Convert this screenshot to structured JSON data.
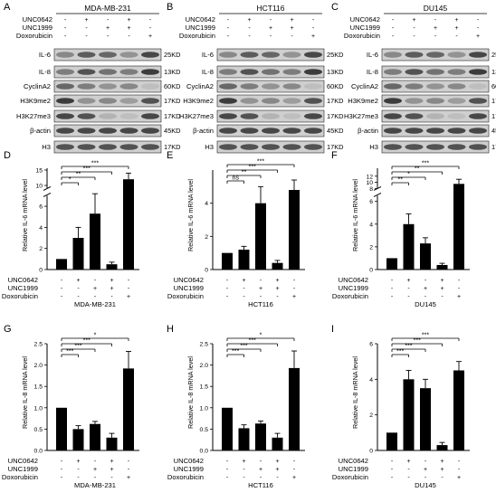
{
  "blot_rows": [
    "IL-6",
    "IL-8",
    "CyclinA2",
    "H3K9me2",
    "H3K27me3",
    "β-actin",
    "H3"
  ],
  "kd_labels": [
    "25KD",
    "13KD",
    "60KD",
    "17KD",
    "17KD",
    "45KD",
    "17KD"
  ],
  "treatment_labels": [
    "UNC0642",
    "UNC1999",
    "Doxorubicin"
  ],
  "signs": [
    [
      "-",
      "+",
      "-",
      "+",
      "-"
    ],
    [
      "-",
      "-",
      "+",
      "+",
      "-"
    ],
    [
      "-",
      "-",
      "-",
      "-",
      "+"
    ]
  ],
  "blot_panels": [
    {
      "letter": "A",
      "cell": "MDA-MB-231",
      "show_row_labels": true
    },
    {
      "letter": "B",
      "cell": "HCT116",
      "show_row_labels": true
    },
    {
      "letter": "C",
      "cell": "DU145",
      "show_row_labels": true
    }
  ],
  "chart_data": [
    {
      "type": "bar",
      "panel": "D",
      "cell_line": "MDA-MB-231",
      "ylabel": "Relative  IL-6 mRNA level",
      "values": [
        1,
        3,
        5.3,
        0.5,
        12
      ],
      "errors": [
        0,
        1,
        2,
        0.2,
        2
      ],
      "broken_axis": true,
      "lower_ylim": [
        0,
        7
      ],
      "lower_ticks": [
        0,
        2,
        4,
        6
      ],
      "upper_ylim": [
        9,
        15
      ],
      "upper_ticks": [
        10,
        15
      ],
      "significance": [
        {
          "to": 1,
          "label": "*"
        },
        {
          "to": 2,
          "label": "**"
        },
        {
          "to": 3,
          "label": "***"
        },
        {
          "to": 4,
          "label": "***"
        }
      ]
    },
    {
      "type": "bar",
      "panel": "E",
      "cell_line": "HCT116",
      "ylabel": "Relative  IL-6 mRNA level",
      "values": [
        1,
        1.2,
        4,
        0.4,
        4.8
      ],
      "errors": [
        0,
        0.2,
        1,
        0.15,
        0.6
      ],
      "broken_axis": false,
      "ylim": [
        0,
        6
      ],
      "ticks": [
        0,
        2,
        4
      ],
      "significance": [
        {
          "to": 1,
          "label": "ns"
        },
        {
          "to": 2,
          "label": "**"
        },
        {
          "to": 3,
          "label": "***"
        },
        {
          "to": 4,
          "label": "***"
        }
      ]
    },
    {
      "type": "bar",
      "panel": "F",
      "cell_line": "DU145",
      "ylabel": "Relative  IL-6 mRNA level",
      "values": [
        1,
        4,
        2.3,
        0.4,
        9.5
      ],
      "errors": [
        0,
        0.9,
        0.5,
        0.15,
        1.5
      ],
      "broken_axis": true,
      "lower_ylim": [
        0,
        6.5
      ],
      "lower_ticks": [
        0,
        2,
        4,
        6
      ],
      "upper_ylim": [
        8,
        14
      ],
      "upper_ticks": [
        8,
        10,
        12
      ],
      "significance": [
        {
          "to": 1,
          "label": "**"
        },
        {
          "to": 2,
          "label": "*"
        },
        {
          "to": 3,
          "label": "**"
        },
        {
          "to": 4,
          "label": "***"
        }
      ]
    },
    {
      "type": "bar",
      "panel": "G",
      "cell_line": "MDA-MB-231",
      "ylabel": "Relative  IL-8 mRNA level",
      "values": [
        1,
        0.5,
        0.62,
        0.3,
        1.92
      ],
      "errors": [
        0,
        0.08,
        0.06,
        0.1,
        0.4
      ],
      "broken_axis": false,
      "ylim": [
        0,
        2.5
      ],
      "ticks": [
        0.0,
        0.5,
        1.0,
        1.5,
        2.0,
        2.5
      ],
      "significance": [
        {
          "to": 1,
          "label": "***"
        },
        {
          "to": 2,
          "label": "***"
        },
        {
          "to": 3,
          "label": "***"
        },
        {
          "to": 4,
          "label": "*"
        }
      ]
    },
    {
      "type": "bar",
      "panel": "H",
      "cell_line": "HCT116",
      "ylabel": "Relative  IL-8 mRNA level",
      "values": [
        1,
        0.52,
        0.63,
        0.3,
        1.93
      ],
      "errors": [
        0,
        0.08,
        0.06,
        0.1,
        0.4
      ],
      "broken_axis": false,
      "ylim": [
        0,
        2.5
      ],
      "ticks": [
        0.0,
        0.5,
        1.0,
        1.5,
        2.0,
        2.5
      ],
      "significance": [
        {
          "to": 1,
          "label": "***"
        },
        {
          "to": 2,
          "label": "***"
        },
        {
          "to": 3,
          "label": "***"
        },
        {
          "to": 4,
          "label": "*"
        }
      ]
    },
    {
      "type": "bar",
      "panel": "I",
      "cell_line": "DU145",
      "ylabel": "Relative  IL-8 mRNA level",
      "values": [
        1,
        4,
        3.5,
        0.3,
        4.5
      ],
      "errors": [
        0,
        0.5,
        0.5,
        0.15,
        0.5
      ],
      "broken_axis": false,
      "ylim": [
        0,
        6
      ],
      "ticks": [
        0,
        2,
        4,
        6
      ],
      "significance": [
        {
          "to": 1,
          "label": "***"
        },
        {
          "to": 2,
          "label": "***"
        },
        {
          "to": 3,
          "label": "***"
        },
        {
          "to": 4,
          "label": "***"
        }
      ]
    }
  ]
}
